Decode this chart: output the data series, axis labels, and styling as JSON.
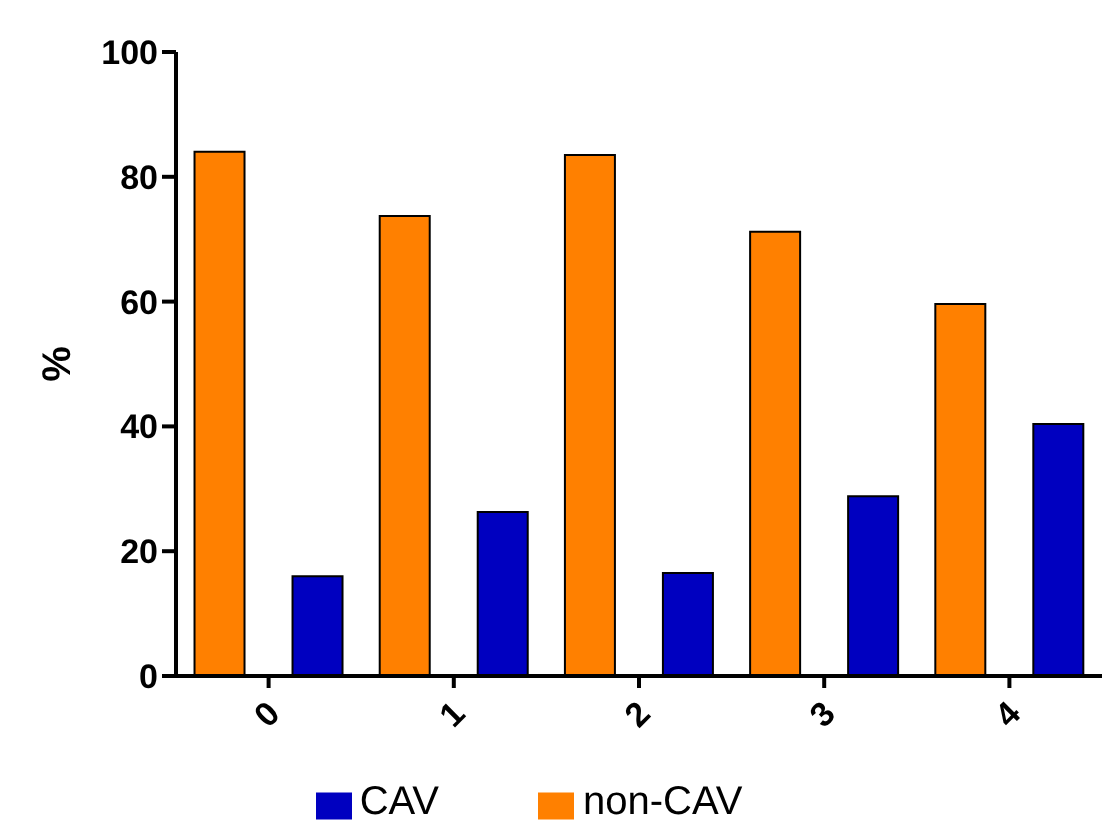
{
  "chart_data": {
    "type": "bar",
    "ylabel": "%",
    "categories": [
      "0",
      "1",
      "2",
      "3",
      "4"
    ],
    "series": [
      {
        "name": "non-CAV",
        "color": "#ff8000",
        "values": [
          84,
          73.7,
          83.5,
          71.2,
          59.6
        ]
      },
      {
        "name": "CAV",
        "color": "#0000c0",
        "values": [
          16,
          26.3,
          16.5,
          28.8,
          40.4
        ]
      }
    ],
    "ylim": [
      0,
      100
    ],
    "yticks": [
      0,
      20,
      40,
      60,
      80,
      100
    ],
    "grid": false,
    "legend": "bottom"
  }
}
